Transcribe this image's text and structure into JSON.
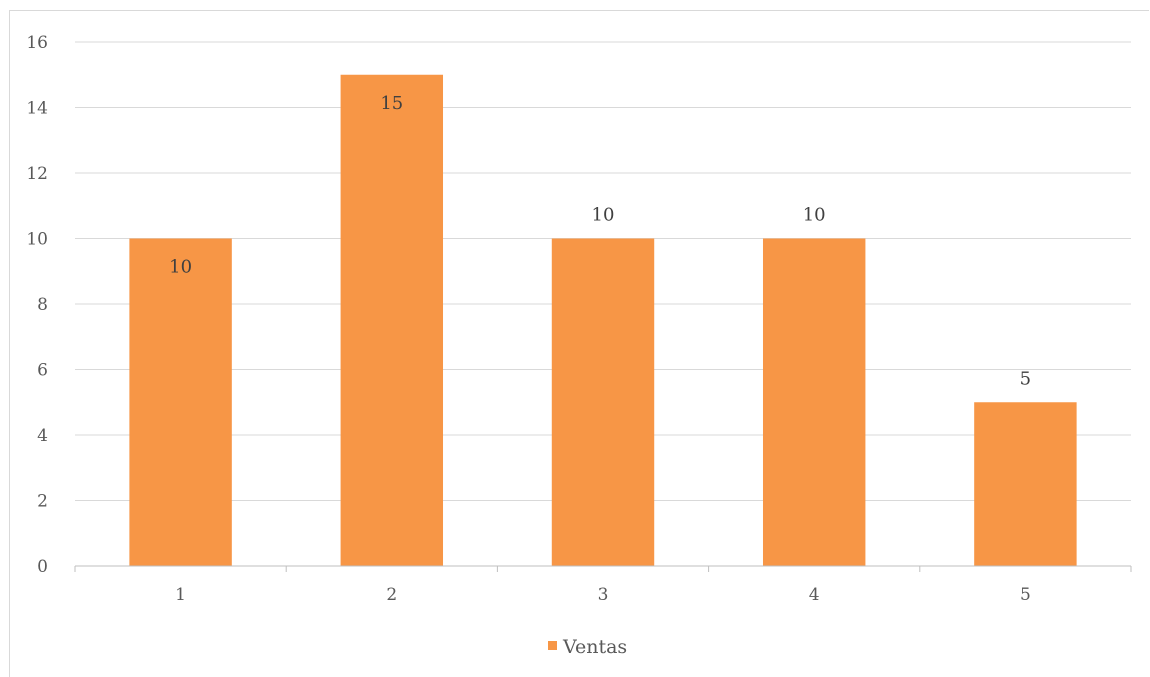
{
  "chart_data": {
    "type": "bar",
    "categories": [
      "1",
      "2",
      "3",
      "4",
      "5"
    ],
    "series": [
      {
        "name": "Ventas",
        "values": [
          10,
          15,
          10,
          10,
          5
        ],
        "color": "#F79646"
      }
    ],
    "data_labels": [
      "10",
      "15",
      "10",
      "10",
      "5"
    ],
    "y_ticks": [
      "0",
      "2",
      "4",
      "6",
      "8",
      "10",
      "12",
      "14",
      "16"
    ],
    "ylim": [
      0,
      16
    ],
    "title": "",
    "xlabel": "",
    "ylabel": "",
    "grid": true,
    "legend_position": "bottom"
  },
  "colors": {
    "gridline": "#d9d9d9",
    "axis": "#bfbfbf",
    "bar": "#F79646"
  }
}
